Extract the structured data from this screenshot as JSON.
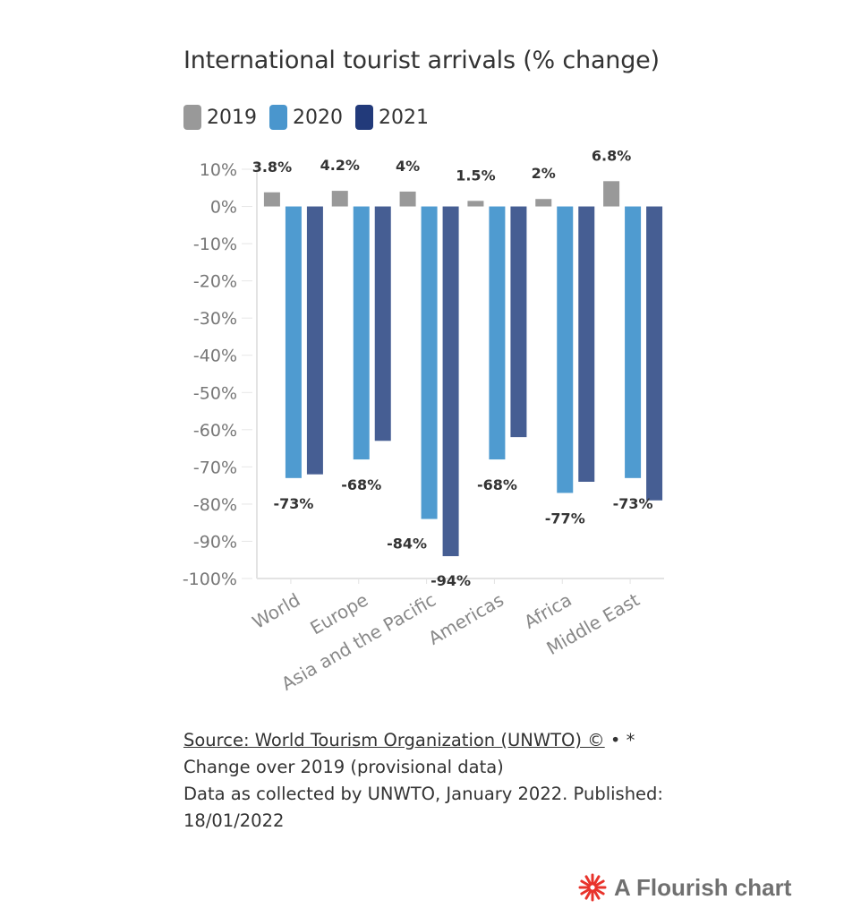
{
  "chart_title": "International tourist arrivals (% change)",
  "legend": [
    {
      "label": "2019",
      "color": "#999999"
    },
    {
      "label": "2020",
      "color": "#4a96cd"
    },
    {
      "label": "2021",
      "color": "#445e96"
    }
  ],
  "chart_data": {
    "type": "bar",
    "categories": [
      "World",
      "Europe",
      "Asia and the Pacific",
      "Americas",
      "Africa",
      "Middle East"
    ],
    "series": [
      {
        "name": "2019",
        "values": [
          3.8,
          4.2,
          4,
          1.5,
          2,
          6.8
        ]
      },
      {
        "name": "2020",
        "values": [
          -73,
          -68,
          -84,
          -68,
          -77,
          -73
        ]
      },
      {
        "name": "2021",
        "values": [
          -72,
          -63,
          -94,
          -62,
          -74,
          -79
        ]
      }
    ],
    "labels": {
      "2019": [
        "3.8%",
        "4.2%",
        "4%",
        "1.5%",
        "2%",
        "6.8%"
      ],
      "2020": [
        "-73%",
        "-68%",
        "",
        "-68%",
        "-77%",
        "-73%"
      ],
      "2021": [
        "",
        "",
        "-94%",
        "",
        "",
        ""
      ],
      "asia_2020": "-84%"
    },
    "ylim": [
      -100,
      10
    ],
    "yticks": [
      10,
      0,
      -10,
      -20,
      -30,
      -40,
      -50,
      -60,
      -70,
      -80,
      -90,
      -100
    ],
    "ytick_labels": [
      "10%",
      "0%",
      "-10%",
      "-20%",
      "-30%",
      "-40%",
      "-50%",
      "-60%",
      "-70%",
      "-80%",
      "-90%",
      "-100%"
    ],
    "grid": false,
    "legend_position": "top-left"
  },
  "footer": {
    "source_link": "Source: World Tourism Organization (UNWTO) ©",
    "source_suffix": " • *",
    "line2": "Change over 2019 (provisional data)",
    "line3": "Data as collected by UNWTO, January 2022. Published:",
    "line4": "18/01/2022"
  },
  "brand": {
    "label": "A Flourish chart",
    "icon_color": "#e8332b"
  }
}
